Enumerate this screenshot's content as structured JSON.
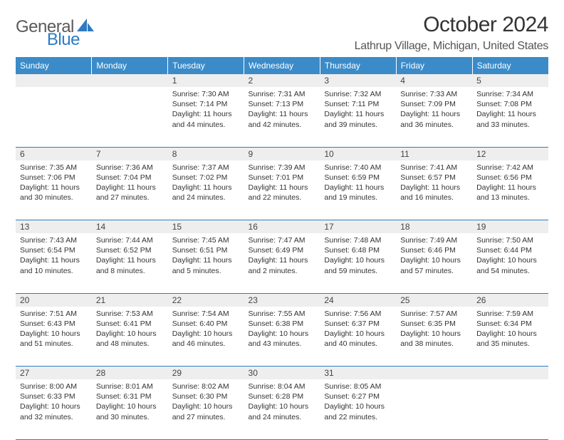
{
  "logo": {
    "general": "General",
    "blue": "Blue"
  },
  "title": "October 2024",
  "location": "Lathrup Village, Michigan, United States",
  "colors": {
    "header_bg": "#3b8bc9",
    "header_text": "#ffffff",
    "daynum_bg": "#eeeeee",
    "border": "#2d7bc2",
    "logo_gray": "#5a5a5a",
    "logo_blue": "#2d7bc2"
  },
  "weekdays": [
    "Sunday",
    "Monday",
    "Tuesday",
    "Wednesday",
    "Thursday",
    "Friday",
    "Saturday"
  ],
  "weeks": [
    [
      null,
      null,
      {
        "n": "1",
        "sr": "Sunrise: 7:30 AM",
        "ss": "Sunset: 7:14 PM",
        "d1": "Daylight: 11 hours",
        "d2": "and 44 minutes."
      },
      {
        "n": "2",
        "sr": "Sunrise: 7:31 AM",
        "ss": "Sunset: 7:13 PM",
        "d1": "Daylight: 11 hours",
        "d2": "and 42 minutes."
      },
      {
        "n": "3",
        "sr": "Sunrise: 7:32 AM",
        "ss": "Sunset: 7:11 PM",
        "d1": "Daylight: 11 hours",
        "d2": "and 39 minutes."
      },
      {
        "n": "4",
        "sr": "Sunrise: 7:33 AM",
        "ss": "Sunset: 7:09 PM",
        "d1": "Daylight: 11 hours",
        "d2": "and 36 minutes."
      },
      {
        "n": "5",
        "sr": "Sunrise: 7:34 AM",
        "ss": "Sunset: 7:08 PM",
        "d1": "Daylight: 11 hours",
        "d2": "and 33 minutes."
      }
    ],
    [
      {
        "n": "6",
        "sr": "Sunrise: 7:35 AM",
        "ss": "Sunset: 7:06 PM",
        "d1": "Daylight: 11 hours",
        "d2": "and 30 minutes."
      },
      {
        "n": "7",
        "sr": "Sunrise: 7:36 AM",
        "ss": "Sunset: 7:04 PM",
        "d1": "Daylight: 11 hours",
        "d2": "and 27 minutes."
      },
      {
        "n": "8",
        "sr": "Sunrise: 7:37 AM",
        "ss": "Sunset: 7:02 PM",
        "d1": "Daylight: 11 hours",
        "d2": "and 24 minutes."
      },
      {
        "n": "9",
        "sr": "Sunrise: 7:39 AM",
        "ss": "Sunset: 7:01 PM",
        "d1": "Daylight: 11 hours",
        "d2": "and 22 minutes."
      },
      {
        "n": "10",
        "sr": "Sunrise: 7:40 AM",
        "ss": "Sunset: 6:59 PM",
        "d1": "Daylight: 11 hours",
        "d2": "and 19 minutes."
      },
      {
        "n": "11",
        "sr": "Sunrise: 7:41 AM",
        "ss": "Sunset: 6:57 PM",
        "d1": "Daylight: 11 hours",
        "d2": "and 16 minutes."
      },
      {
        "n": "12",
        "sr": "Sunrise: 7:42 AM",
        "ss": "Sunset: 6:56 PM",
        "d1": "Daylight: 11 hours",
        "d2": "and 13 minutes."
      }
    ],
    [
      {
        "n": "13",
        "sr": "Sunrise: 7:43 AM",
        "ss": "Sunset: 6:54 PM",
        "d1": "Daylight: 11 hours",
        "d2": "and 10 minutes."
      },
      {
        "n": "14",
        "sr": "Sunrise: 7:44 AM",
        "ss": "Sunset: 6:52 PM",
        "d1": "Daylight: 11 hours",
        "d2": "and 8 minutes."
      },
      {
        "n": "15",
        "sr": "Sunrise: 7:45 AM",
        "ss": "Sunset: 6:51 PM",
        "d1": "Daylight: 11 hours",
        "d2": "and 5 minutes."
      },
      {
        "n": "16",
        "sr": "Sunrise: 7:47 AM",
        "ss": "Sunset: 6:49 PM",
        "d1": "Daylight: 11 hours",
        "d2": "and 2 minutes."
      },
      {
        "n": "17",
        "sr": "Sunrise: 7:48 AM",
        "ss": "Sunset: 6:48 PM",
        "d1": "Daylight: 10 hours",
        "d2": "and 59 minutes."
      },
      {
        "n": "18",
        "sr": "Sunrise: 7:49 AM",
        "ss": "Sunset: 6:46 PM",
        "d1": "Daylight: 10 hours",
        "d2": "and 57 minutes."
      },
      {
        "n": "19",
        "sr": "Sunrise: 7:50 AM",
        "ss": "Sunset: 6:44 PM",
        "d1": "Daylight: 10 hours",
        "d2": "and 54 minutes."
      }
    ],
    [
      {
        "n": "20",
        "sr": "Sunrise: 7:51 AM",
        "ss": "Sunset: 6:43 PM",
        "d1": "Daylight: 10 hours",
        "d2": "and 51 minutes."
      },
      {
        "n": "21",
        "sr": "Sunrise: 7:53 AM",
        "ss": "Sunset: 6:41 PM",
        "d1": "Daylight: 10 hours",
        "d2": "and 48 minutes."
      },
      {
        "n": "22",
        "sr": "Sunrise: 7:54 AM",
        "ss": "Sunset: 6:40 PM",
        "d1": "Daylight: 10 hours",
        "d2": "and 46 minutes."
      },
      {
        "n": "23",
        "sr": "Sunrise: 7:55 AM",
        "ss": "Sunset: 6:38 PM",
        "d1": "Daylight: 10 hours",
        "d2": "and 43 minutes."
      },
      {
        "n": "24",
        "sr": "Sunrise: 7:56 AM",
        "ss": "Sunset: 6:37 PM",
        "d1": "Daylight: 10 hours",
        "d2": "and 40 minutes."
      },
      {
        "n": "25",
        "sr": "Sunrise: 7:57 AM",
        "ss": "Sunset: 6:35 PM",
        "d1": "Daylight: 10 hours",
        "d2": "and 38 minutes."
      },
      {
        "n": "26",
        "sr": "Sunrise: 7:59 AM",
        "ss": "Sunset: 6:34 PM",
        "d1": "Daylight: 10 hours",
        "d2": "and 35 minutes."
      }
    ],
    [
      {
        "n": "27",
        "sr": "Sunrise: 8:00 AM",
        "ss": "Sunset: 6:33 PM",
        "d1": "Daylight: 10 hours",
        "d2": "and 32 minutes."
      },
      {
        "n": "28",
        "sr": "Sunrise: 8:01 AM",
        "ss": "Sunset: 6:31 PM",
        "d1": "Daylight: 10 hours",
        "d2": "and 30 minutes."
      },
      {
        "n": "29",
        "sr": "Sunrise: 8:02 AM",
        "ss": "Sunset: 6:30 PM",
        "d1": "Daylight: 10 hours",
        "d2": "and 27 minutes."
      },
      {
        "n": "30",
        "sr": "Sunrise: 8:04 AM",
        "ss": "Sunset: 6:28 PM",
        "d1": "Daylight: 10 hours",
        "d2": "and 24 minutes."
      },
      {
        "n": "31",
        "sr": "Sunrise: 8:05 AM",
        "ss": "Sunset: 6:27 PM",
        "d1": "Daylight: 10 hours",
        "d2": "and 22 minutes."
      },
      null,
      null
    ]
  ]
}
